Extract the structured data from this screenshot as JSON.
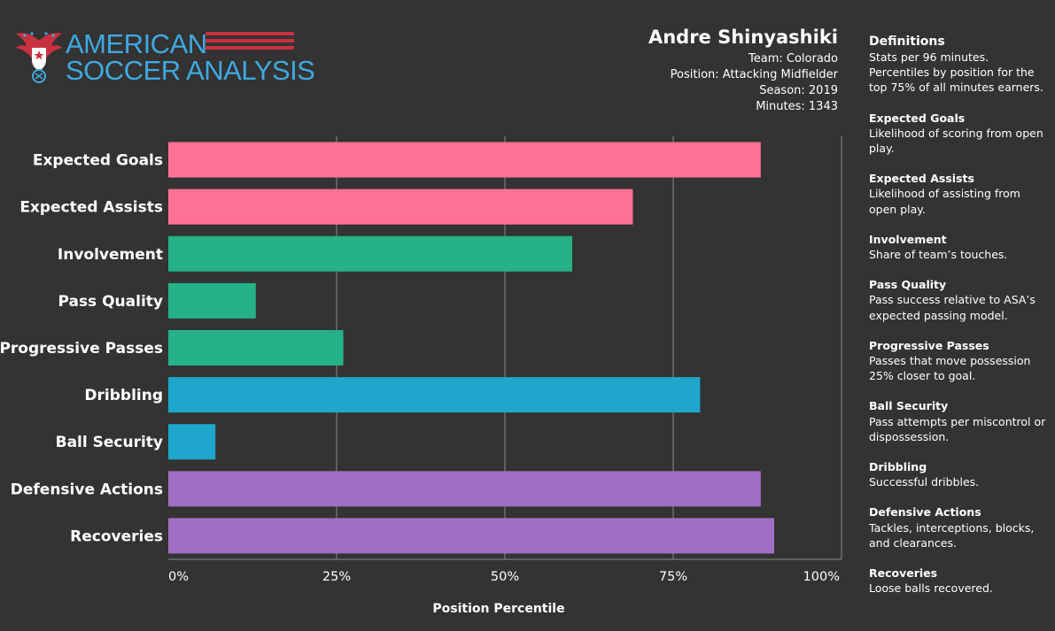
{
  "logo": {
    "line1": "AMERICAN",
    "line2": "SOCCER ANALYSIS",
    "brand_blue": "#3fa9e0",
    "brand_red": "#c8313f"
  },
  "player": {
    "name": "Andre Shinyashiki",
    "team": "Team: Colorado",
    "position": "Position: Attacking Midfielder",
    "season": "Season: 2019",
    "minutes": "Minutes: 1343"
  },
  "chart_data": {
    "type": "bar",
    "orientation": "horizontal",
    "categories": [
      "Expected Goals",
      "Expected Assists",
      "Involvement",
      "Pass Quality",
      "Progressive Passes",
      "Dribbling",
      "Ball Security",
      "Defensive Actions",
      "Recoveries"
    ],
    "values": [
      88,
      69,
      60,
      13,
      26,
      79,
      7,
      88,
      90
    ],
    "colors": [
      "#ff7196",
      "#ff7196",
      "#24b286",
      "#24b286",
      "#24b286",
      "#1fa6cc",
      "#1fa6cc",
      "#a06fc4",
      "#a06fc4"
    ],
    "xlabel": "Position Percentile",
    "xlim": [
      0,
      100
    ],
    "x_ticks": [
      "0%",
      "25%",
      "50%",
      "75%",
      "100%"
    ],
    "grid": true
  },
  "definitions": {
    "title": "Definitions",
    "intro": "Stats per 96 minutes. Percentiles by position for the top 75% of all minutes earners.",
    "items": [
      {
        "term": "Expected Goals",
        "text": "Likelihood of scoring from open play."
      },
      {
        "term": "Expected Assists",
        "text": "Likelihood of assisting from open play."
      },
      {
        "term": "Involvement",
        "text": "Share of team’s touches."
      },
      {
        "term": "Pass Quality",
        "text": "Pass success relative to ASA’s expected passing model."
      },
      {
        "term": "Progressive Passes",
        "text": "Passes that move possession 25% closer to goal."
      },
      {
        "term": "Ball Security",
        "text": "Pass attempts per miscontrol or dispossession."
      },
      {
        "term": "Dribbling",
        "text": "Successful dribbles."
      },
      {
        "term": "Defensive Actions",
        "text": "Tackles, interceptions, blocks, and clearances."
      },
      {
        "term": "Recoveries",
        "text": "Loose balls recovered."
      }
    ]
  }
}
